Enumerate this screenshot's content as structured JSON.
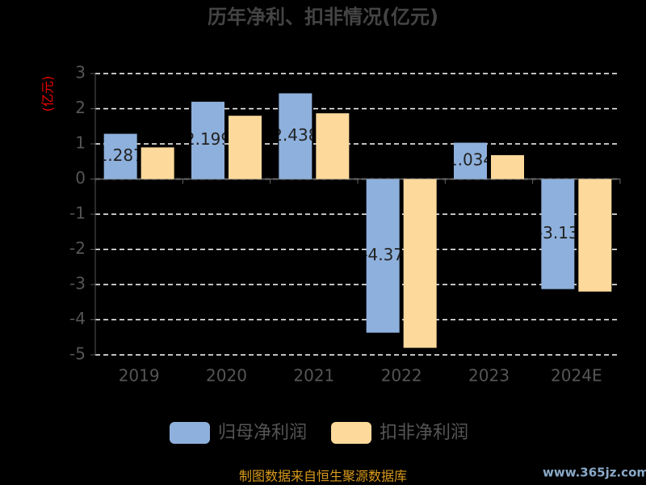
{
  "chart_data": {
    "type": "bar",
    "title": "历年净利、扣非情况(亿元)",
    "y_label": "(亿元)",
    "categories": [
      "2019",
      "2020",
      "2021",
      "2022",
      "2023",
      "2024E"
    ],
    "series": [
      {
        "name": "归母净利润",
        "color": "#8eb0dc",
        "values": [
          1.287,
          2.199,
          2.438,
          -4.37,
          1.034,
          -3.13
        ]
      },
      {
        "name": "扣非净利润",
        "color": "#fdd99b",
        "values": [
          0.9,
          1.8,
          1.87,
          -4.8,
          0.68,
          -3.2
        ]
      }
    ],
    "ylim": [
      -5,
      3
    ],
    "yticks": [
      -5,
      -4,
      -3,
      -2,
      -1,
      0,
      1,
      2,
      3
    ],
    "grid": true,
    "legend": "bottom",
    "source": "制图数据来自恒生聚源数据库",
    "watermark": "www.365jz.com"
  }
}
